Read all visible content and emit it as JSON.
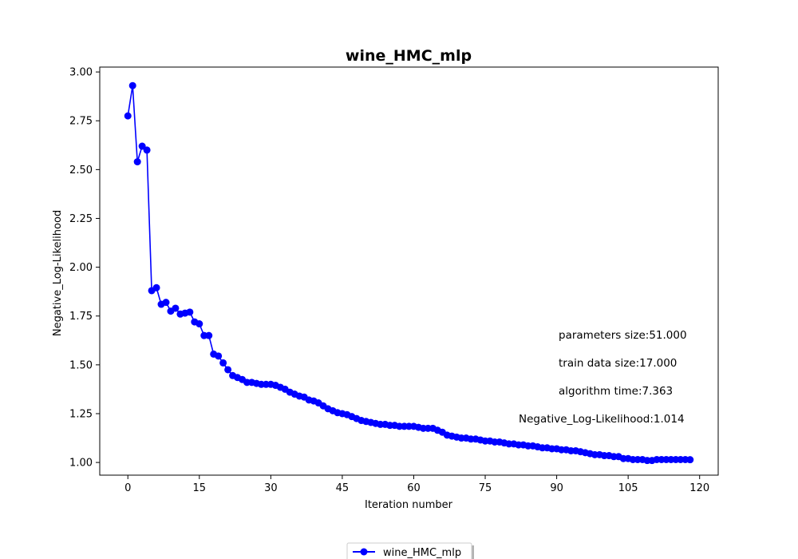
{
  "chart_data": {
    "type": "line",
    "title": "wine_HMC_mlp",
    "xlabel": "Iteration number",
    "ylabel": "Negative_Log-Likelihood",
    "xlim": [
      -5.9,
      123.9
    ],
    "ylim": [
      0.935,
      3.025
    ],
    "xticks": [
      0,
      15,
      30,
      45,
      60,
      75,
      90,
      105,
      120
    ],
    "yticks": [
      1.0,
      1.25,
      1.5,
      1.75,
      2.0,
      2.25,
      2.5,
      2.75,
      3.0
    ],
    "ytick_labels": [
      "1.00",
      "1.25",
      "1.50",
      "1.75",
      "2.00",
      "2.25",
      "2.50",
      "2.75",
      "3.00"
    ],
    "grid": false,
    "legend_position": "bottom-center",
    "series": [
      {
        "name": "wine_HMC_mlp",
        "color": "#0000ff",
        "marker": "circle",
        "x": [
          0,
          1,
          2,
          3,
          4,
          5,
          6,
          7,
          8,
          9,
          10,
          11,
          12,
          13,
          14,
          15,
          16,
          17,
          18,
          19,
          20,
          21,
          22,
          23,
          24,
          25,
          26,
          27,
          28,
          29,
          30,
          31,
          32,
          33,
          34,
          35,
          36,
          37,
          38,
          39,
          40,
          41,
          42,
          43,
          44,
          45,
          46,
          47,
          48,
          49,
          50,
          51,
          52,
          53,
          54,
          55,
          56,
          57,
          58,
          59,
          60,
          61,
          62,
          63,
          64,
          65,
          66,
          67,
          68,
          69,
          70,
          71,
          72,
          73,
          74,
          75,
          76,
          77,
          78,
          79,
          80,
          81,
          82,
          83,
          84,
          85,
          86,
          87,
          88,
          89,
          90,
          91,
          92,
          93,
          94,
          95,
          96,
          97,
          98,
          99,
          100,
          101,
          102,
          103,
          104,
          105,
          106,
          107,
          108,
          109,
          110,
          111,
          112,
          113,
          114,
          115,
          116,
          117,
          118
        ],
        "y": [
          2.775,
          2.93,
          2.54,
          2.62,
          2.6,
          1.88,
          1.895,
          1.81,
          1.82,
          1.775,
          1.79,
          1.76,
          1.765,
          1.77,
          1.72,
          1.71,
          1.65,
          1.65,
          1.555,
          1.545,
          1.51,
          1.475,
          1.445,
          1.435,
          1.425,
          1.41,
          1.41,
          1.405,
          1.4,
          1.4,
          1.4,
          1.395,
          1.385,
          1.375,
          1.36,
          1.35,
          1.34,
          1.335,
          1.32,
          1.315,
          1.305,
          1.29,
          1.275,
          1.265,
          1.255,
          1.25,
          1.245,
          1.235,
          1.225,
          1.215,
          1.21,
          1.205,
          1.2,
          1.195,
          1.195,
          1.19,
          1.19,
          1.185,
          1.185,
          1.185,
          1.185,
          1.18,
          1.175,
          1.175,
          1.175,
          1.165,
          1.155,
          1.14,
          1.135,
          1.13,
          1.125,
          1.125,
          1.12,
          1.12,
          1.115,
          1.11,
          1.11,
          1.105,
          1.105,
          1.1,
          1.095,
          1.095,
          1.09,
          1.09,
          1.085,
          1.085,
          1.08,
          1.075,
          1.075,
          1.07,
          1.07,
          1.065,
          1.065,
          1.06,
          1.06,
          1.055,
          1.05,
          1.045,
          1.04,
          1.04,
          1.035,
          1.035,
          1.03,
          1.03,
          1.02,
          1.02,
          1.015,
          1.015,
          1.015,
          1.01,
          1.01,
          1.015,
          1.015,
          1.015,
          1.015,
          1.015,
          1.015,
          1.015,
          1.014
        ]
      }
    ],
    "annotations": [
      "parameters size:51.000",
      "train data size:17.000",
      "algorithm time:7.363",
      "Negative_Log-Likelihood:1.014"
    ]
  }
}
